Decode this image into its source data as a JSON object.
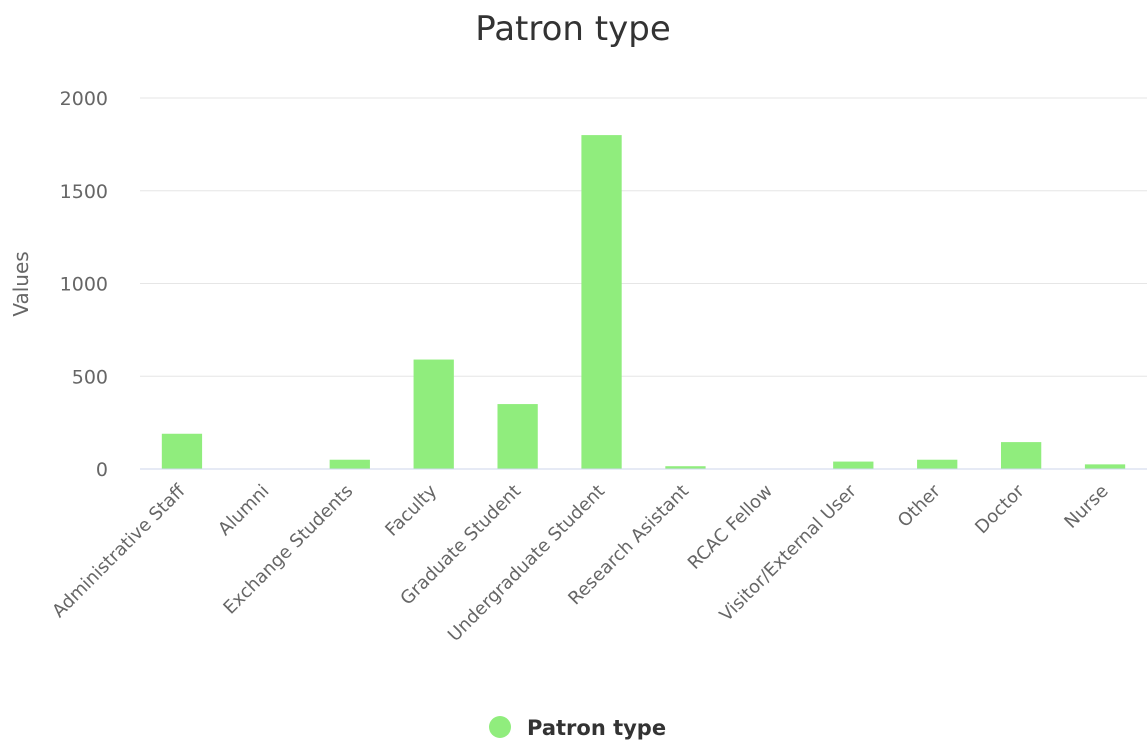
{
  "chart_data": {
    "type": "bar",
    "title": "Patron type",
    "xlabel": "",
    "ylabel": "Values",
    "ylim": [
      0,
      2000
    ],
    "yticks": [
      0,
      500,
      1000,
      1500,
      2000
    ],
    "grid": true,
    "legend_position": "bottom-center",
    "categories": [
      "Administrative Staff",
      "Alumni",
      "Exchange Students",
      "Faculty",
      "Graduate Student",
      "Undergraduate Student",
      "Research Asistant",
      "RCAC Fellow",
      "Visitor/External User",
      "Other",
      "Doctor",
      "Nurse"
    ],
    "series": [
      {
        "name": "Patron type",
        "color": "#90ed7d",
        "values": [
          190,
          0,
          50,
          590,
          350,
          1800,
          15,
          0,
          40,
          50,
          145,
          25
        ]
      }
    ]
  }
}
